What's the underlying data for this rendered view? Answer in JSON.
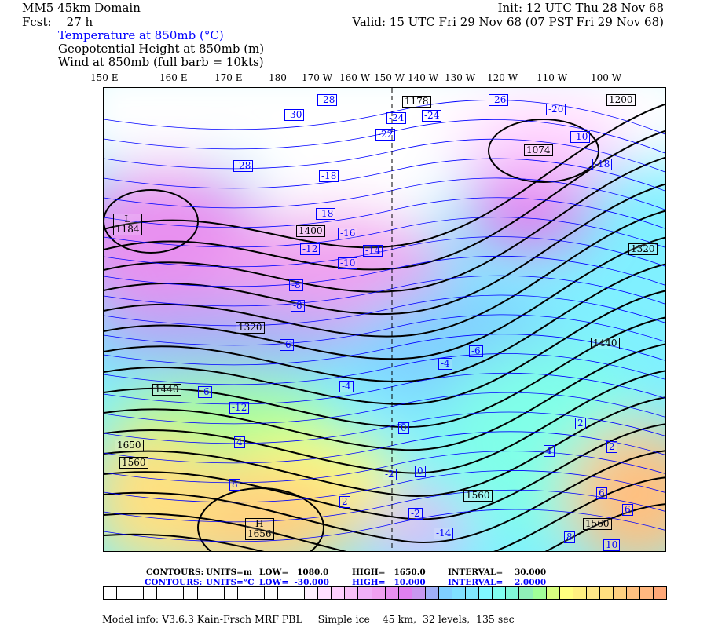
{
  "header": {
    "domain_title": "MM5 45km Domain",
    "init": "Init: 12 UTC Thu 28 Nov 68",
    "fcst": "Fcst:    27 h",
    "valid": "Valid: 15 UTC Fri 29 Nov 68 (07 PST Fri 29 Nov 68)",
    "field1": "Temperature at 850mb (°C)",
    "field2": "Geopotential Height at 850mb (m)",
    "field3": "Wind at 850mb (full barb = 10kts)"
  },
  "longitudes": [
    "150 E",
    "160 E",
    "170 E",
    "180",
    "170 W",
    "160 W",
    "150 W",
    "140 W",
    "130 W",
    "120 W",
    "110 W",
    "100 W"
  ],
  "map": {
    "height_labels": [
      "L\n1184",
      "1400",
      "1320",
      "1440",
      "1560",
      "1650",
      "1178",
      "1074",
      "1200",
      "1320",
      "1440",
      "1560",
      "1560",
      "H\n1656"
    ],
    "temp_labels": [
      "-28",
      "-30",
      "-24",
      "-24",
      "-22",
      "-28",
      "-18",
      "-18",
      "-10",
      "-26",
      "-20",
      "-18",
      "-16",
      "-14",
      "-12",
      "-10",
      "-8",
      "-6",
      "-6",
      "-4",
      "-4",
      "-2",
      "0",
      "0",
      "2",
      "2",
      "4",
      "6",
      "8",
      "8",
      "6",
      "10",
      "4",
      "2",
      "-2",
      "-6",
      "-8",
      "-12",
      "-14"
    ],
    "colors": {
      "temperature_contour": "#0000ff",
      "height_contour": "#000000",
      "cold": "#e070f0",
      "warm": "#ffb070",
      "mid": "#80f0ff"
    }
  },
  "legend": {
    "height": {
      "contours": "CONTOURS:",
      "units": "UNITS=m",
      "low": "LOW=   1080.0",
      "high": "HIGH=   1650.0",
      "interval": "INTERVAL=    30.000"
    },
    "temp": {
      "contours": "CONTOURS:",
      "units": "UNITS=°C",
      "low": "LOW=  -30.000",
      "high": "HIGH=   10.000",
      "interval": "INTERVAL=    2.0000"
    },
    "colorbar": [
      "#ffffff",
      "#ffffff",
      "#ffffff",
      "#ffffff",
      "#ffffff",
      "#ffffff",
      "#ffffff",
      "#ffffff",
      "#ffffff",
      "#ffffff",
      "#ffffff",
      "#ffffff",
      "#ffffff",
      "#ffffff",
      "#ffffff",
      "#fff0ff",
      "#ffe0ff",
      "#ffd0ff",
      "#f8c0f8",
      "#f0b0f8",
      "#f0a0f0",
      "#e890f0",
      "#e080f0",
      "#c898f0",
      "#a0b0f8",
      "#80d0ff",
      "#80e0ff",
      "#80e8ff",
      "#80f8ff",
      "#80fff0",
      "#80f8d8",
      "#90f0b8",
      "#a0ff98",
      "#d8ff80",
      "#ffff80",
      "#fff080",
      "#ffe888",
      "#ffe080",
      "#ffd080",
      "#ffc080",
      "#ffb880",
      "#ffa878"
    ]
  },
  "footer": "Model info: V3.6.3 Kain-Frsch MRF PBL     Simple ice    45 km,  32 levels,  135 sec"
}
